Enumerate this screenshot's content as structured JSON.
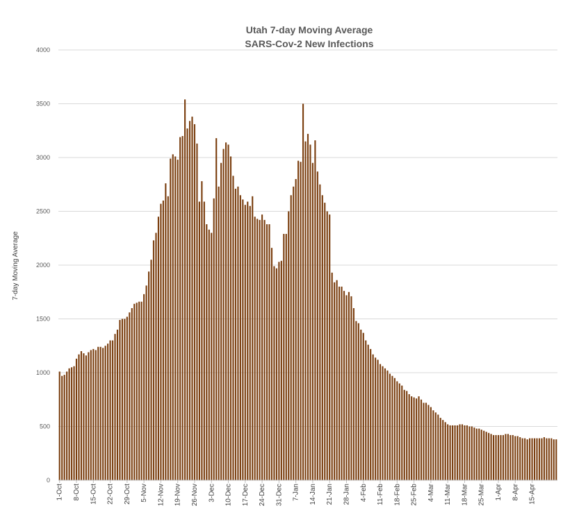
{
  "chart_data": {
    "type": "bar",
    "title": "Utah 7-day Moving Average",
    "subtitle": "SARS-Cov-2 New Infections",
    "ylabel": "7-day Moving Average",
    "xlabel": "",
    "ylim": [
      0,
      4000
    ],
    "yticks": [
      0,
      500,
      1000,
      1500,
      2000,
      2500,
      3000,
      3500,
      4000
    ],
    "grid": "horizontal",
    "legend": "none",
    "bar_color": "#7b3f10",
    "tick_labels": [
      "1-Oct",
      "8-Oct",
      "15-Oct",
      "22-Oct",
      "29-Oct",
      "5-Nov",
      "12-Nov",
      "19-Nov",
      "26-Nov",
      "3-Dec",
      "10-Dec",
      "17-Dec",
      "24-Dec",
      "31-Dec",
      "7-Jan",
      "14-Jan",
      "21-Jan",
      "28-Jan",
      "4-Feb",
      "11-Feb",
      "18-Feb",
      "25-Feb",
      "4-Mar",
      "11-Mar",
      "18-Mar",
      "25-Mar",
      "1-Apr",
      "8-Apr",
      "15-Apr"
    ],
    "x_start": "2020-10-01",
    "x_end": "2021-04-20",
    "values": [
      1010,
      970,
      980,
      1010,
      1040,
      1050,
      1060,
      1130,
      1170,
      1200,
      1180,
      1160,
      1190,
      1210,
      1220,
      1210,
      1240,
      1240,
      1230,
      1250,
      1270,
      1300,
      1300,
      1360,
      1400,
      1490,
      1500,
      1500,
      1520,
      1560,
      1600,
      1640,
      1650,
      1660,
      1660,
      1730,
      1810,
      1940,
      2050,
      2230,
      2300,
      2450,
      2570,
      2600,
      2760,
      2640,
      2990,
      3030,
      3010,
      2980,
      3190,
      3200,
      3540,
      3270,
      3340,
      3380,
      3310,
      3130,
      2590,
      2780,
      2590,
      2380,
      2330,
      2300,
      2620,
      3180,
      2730,
      2950,
      3080,
      3140,
      3120,
      3010,
      2830,
      2710,
      2730,
      2650,
      2610,
      2560,
      2590,
      2550,
      2640,
      2450,
      2430,
      2420,
      2470,
      2420,
      2380,
      2380,
      2160,
      1990,
      1970,
      2030,
      2040,
      2290,
      2290,
      2500,
      2650,
      2730,
      2800,
      2970,
      2960,
      3500,
      3150,
      3220,
      3120,
      2950,
      3160,
      2870,
      2750,
      2650,
      2580,
      2500,
      2470,
      1930,
      1840,
      1860,
      1800,
      1800,
      1760,
      1720,
      1750,
      1710,
      1600,
      1480,
      1460,
      1400,
      1370,
      1300,
      1260,
      1220,
      1170,
      1140,
      1120,
      1080,
      1060,
      1040,
      1020,
      990,
      970,
      950,
      920,
      900,
      880,
      840,
      830,
      800,
      780,
      770,
      760,
      780,
      750,
      720,
      720,
      700,
      680,
      650,
      630,
      610,
      580,
      560,
      540,
      520,
      510,
      510,
      510,
      510,
      520,
      520,
      510,
      510,
      500,
      500,
      490,
      480,
      480,
      470,
      460,
      450,
      440,
      430,
      420,
      420,
      420,
      420,
      420,
      430,
      430,
      420,
      420,
      410,
      410,
      400,
      390,
      390,
      380,
      390,
      390,
      390,
      390,
      390,
      390,
      400,
      390,
      390,
      390,
      380,
      380
    ]
  }
}
